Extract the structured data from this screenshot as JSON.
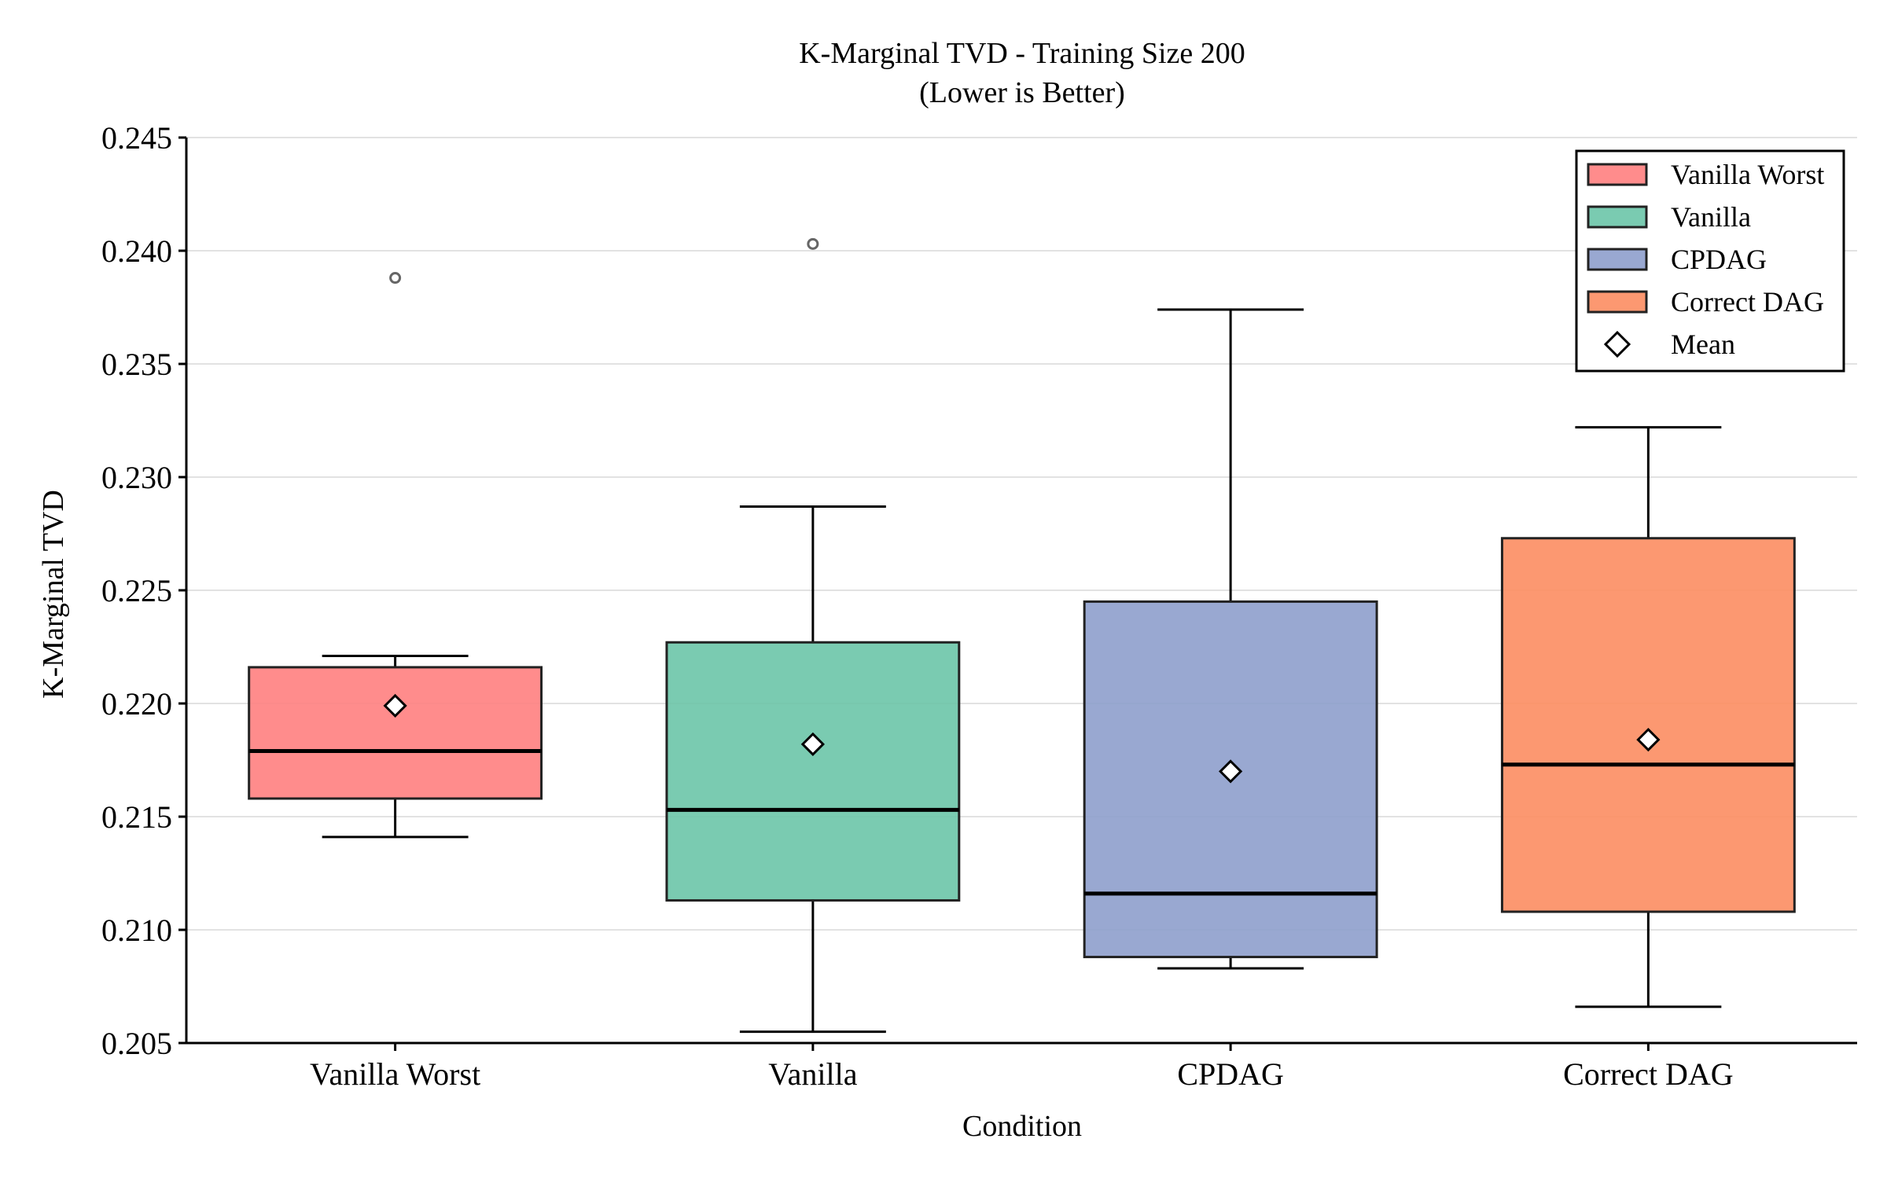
{
  "chart_data": {
    "type": "box",
    "title": "K-Marginal TVD - Training Size 200",
    "subtitle": "(Lower is Better)",
    "xlabel": "Condition",
    "ylabel": "K-Marginal TVD",
    "ylim": [
      0.205,
      0.245
    ],
    "yticks": [
      0.205,
      0.21,
      0.215,
      0.22,
      0.225,
      0.23,
      0.235,
      0.24,
      0.245
    ],
    "ytick_labels": [
      "0.205",
      "0.210",
      "0.215",
      "0.220",
      "0.225",
      "0.230",
      "0.235",
      "0.240",
      "0.245"
    ],
    "grid": "horizontal",
    "legend_position": "top-right",
    "categories": [
      "Vanilla Worst",
      "Vanilla",
      "CPDAG",
      "Correct DAG"
    ],
    "series": [
      {
        "name": "Vanilla Worst",
        "color": "#ff7f7f",
        "whisker_low": 0.2141,
        "q1": 0.2158,
        "median": 0.2179,
        "q3": 0.2216,
        "whisker_high": 0.2221,
        "mean": 0.2199,
        "outliers": [
          0.2388
        ]
      },
      {
        "name": "Vanilla",
        "color": "#6cc5a8",
        "whisker_low": 0.2055,
        "q1": 0.2113,
        "median": 0.2153,
        "q3": 0.2227,
        "whisker_high": 0.2287,
        "mean": 0.2182,
        "outliers": [
          0.2403
        ]
      },
      {
        "name": "CPDAG",
        "color": "#8e9fcc",
        "whisker_low": 0.2083,
        "q1": 0.2088,
        "median": 0.2116,
        "q3": 0.2245,
        "whisker_high": 0.2374,
        "mean": 0.217,
        "outliers": []
      },
      {
        "name": "Correct DAG",
        "color": "#fc8d62",
        "whisker_low": 0.2066,
        "q1": 0.2108,
        "median": 0.2173,
        "q3": 0.2273,
        "whisker_high": 0.2322,
        "mean": 0.2184,
        "outliers": []
      }
    ],
    "legend": [
      "Vanilla Worst",
      "Vanilla",
      "CPDAG",
      "Correct DAG",
      "Mean"
    ]
  }
}
